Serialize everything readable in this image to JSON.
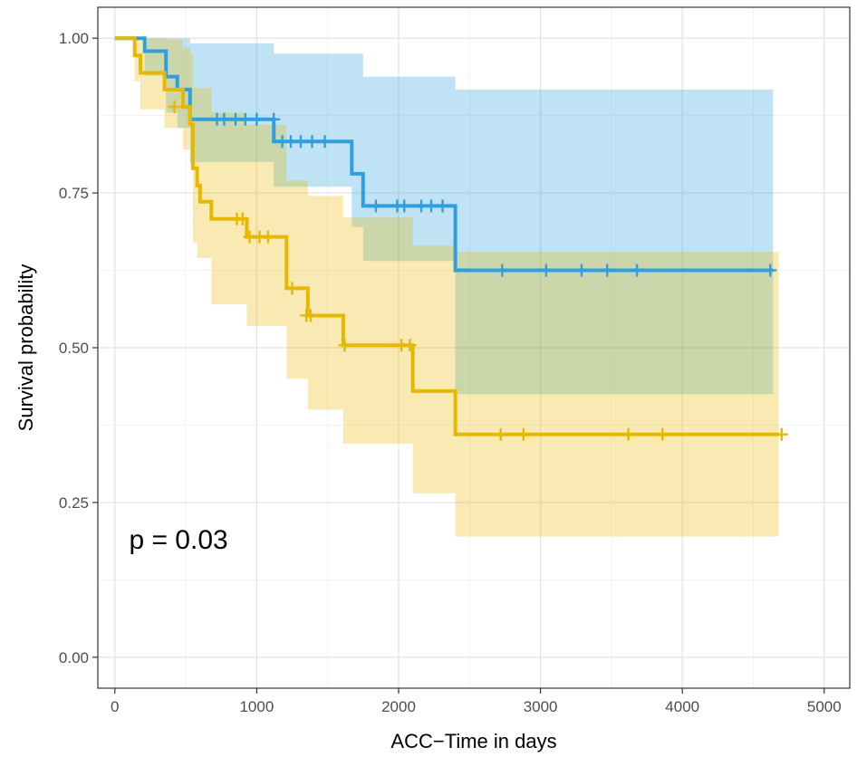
{
  "chart_data": {
    "type": "line",
    "subtype": "kaplan-meier",
    "title": "",
    "xlabel": "ACC−Time in days",
    "ylabel": "Survival probability",
    "xlim": [
      -120,
      5180
    ],
    "ylim": [
      -0.05,
      1.05
    ],
    "x_ticks": [
      0,
      1000,
      2000,
      3000,
      4000,
      5000
    ],
    "x_tick_labels": [
      "0",
      "1000",
      "2000",
      "3000",
      "4000",
      "5000"
    ],
    "y_ticks": [
      0,
      0.25,
      0.5,
      0.75,
      1.0
    ],
    "y_tick_labels": [
      "0.00",
      "0.25",
      "0.50",
      "0.75",
      "1.00"
    ],
    "grid": true,
    "legend": "none",
    "annotation": {
      "text": "p = 0.03",
      "x": 100,
      "y": 0.19
    },
    "series": [
      {
        "color": "#2E9FDF",
        "band_color": "#2E9FDF",
        "steps": [
          [
            0,
            1.0
          ],
          [
            210,
            0.979
          ],
          [
            360,
            0.938
          ],
          [
            440,
            0.917
          ],
          [
            530,
            0.869
          ],
          [
            1120,
            0.833
          ],
          [
            1670,
            0.781
          ],
          [
            1750,
            0.729
          ],
          [
            2400,
            0.625
          ],
          [
            4640,
            0.625
          ]
        ],
        "upper": [
          [
            0,
            1.0
          ],
          [
            210,
            1.0
          ],
          [
            530,
            0.992
          ],
          [
            1120,
            0.975
          ],
          [
            1670,
            0.975
          ],
          [
            1750,
            0.938
          ],
          [
            2400,
            0.917
          ],
          [
            4640,
            0.917
          ]
        ],
        "lower": [
          [
            0,
            1.0
          ],
          [
            210,
            0.94
          ],
          [
            360,
            0.88
          ],
          [
            440,
            0.855
          ],
          [
            530,
            0.8
          ],
          [
            1120,
            0.76
          ],
          [
            1670,
            0.695
          ],
          [
            1750,
            0.64
          ],
          [
            2400,
            0.425
          ],
          [
            4640,
            0.425
          ]
        ],
        "censored": [
          [
            720,
            0.869
          ],
          [
            770,
            0.869
          ],
          [
            850,
            0.869
          ],
          [
            920,
            0.869
          ],
          [
            1000,
            0.869
          ],
          [
            1120,
            0.869
          ],
          [
            1180,
            0.833
          ],
          [
            1240,
            0.833
          ],
          [
            1310,
            0.833
          ],
          [
            1390,
            0.833
          ],
          [
            1480,
            0.833
          ],
          [
            1840,
            0.729
          ],
          [
            1990,
            0.729
          ],
          [
            2040,
            0.729
          ],
          [
            2160,
            0.729
          ],
          [
            2230,
            0.729
          ],
          [
            2310,
            0.729
          ],
          [
            2730,
            0.625
          ],
          [
            3040,
            0.625
          ],
          [
            3290,
            0.625
          ],
          [
            3470,
            0.625
          ],
          [
            3680,
            0.625
          ],
          [
            4620,
            0.625
          ]
        ]
      },
      {
        "color": "#E7B800",
        "band_color": "#E7B800",
        "steps": [
          [
            0,
            1.0
          ],
          [
            140,
            0.972
          ],
          [
            180,
            0.944
          ],
          [
            350,
            0.917
          ],
          [
            480,
            0.889
          ],
          [
            530,
            0.861
          ],
          [
            550,
            0.79
          ],
          [
            580,
            0.762
          ],
          [
            600,
            0.736
          ],
          [
            680,
            0.708
          ],
          [
            930,
            0.679
          ],
          [
            1210,
            0.596
          ],
          [
            1360,
            0.552
          ],
          [
            1610,
            0.504
          ],
          [
            2100,
            0.43
          ],
          [
            2400,
            0.36
          ],
          [
            4680,
            0.36
          ]
        ],
        "upper": [
          [
            0,
            1.0
          ],
          [
            180,
            1.0
          ],
          [
            350,
            0.998
          ],
          [
            480,
            0.985
          ],
          [
            530,
            0.975
          ],
          [
            550,
            0.92
          ],
          [
            680,
            0.88
          ],
          [
            930,
            0.86
          ],
          [
            1210,
            0.77
          ],
          [
            1360,
            0.745
          ],
          [
            1610,
            0.71
          ],
          [
            2100,
            0.665
          ],
          [
            2400,
            0.655
          ],
          [
            4680,
            0.655
          ]
        ],
        "lower": [
          [
            0,
            1.0
          ],
          [
            140,
            0.93
          ],
          [
            180,
            0.885
          ],
          [
            350,
            0.855
          ],
          [
            480,
            0.82
          ],
          [
            530,
            0.795
          ],
          [
            550,
            0.67
          ],
          [
            580,
            0.645
          ],
          [
            680,
            0.57
          ],
          [
            930,
            0.535
          ],
          [
            1210,
            0.45
          ],
          [
            1360,
            0.4
          ],
          [
            1610,
            0.345
          ],
          [
            2100,
            0.265
          ],
          [
            2400,
            0.195
          ],
          [
            4680,
            0.195
          ]
        ],
        "censored": [
          [
            420,
            0.889
          ],
          [
            860,
            0.708
          ],
          [
            900,
            0.708
          ],
          [
            950,
            0.679
          ],
          [
            1020,
            0.679
          ],
          [
            1080,
            0.679
          ],
          [
            1250,
            0.596
          ],
          [
            1350,
            0.552
          ],
          [
            1380,
            0.552
          ],
          [
            1620,
            0.504
          ],
          [
            2020,
            0.504
          ],
          [
            2080,
            0.504
          ],
          [
            2720,
            0.36
          ],
          [
            2880,
            0.36
          ],
          [
            3620,
            0.36
          ],
          [
            3860,
            0.36
          ],
          [
            4700,
            0.36
          ]
        ]
      }
    ]
  }
}
